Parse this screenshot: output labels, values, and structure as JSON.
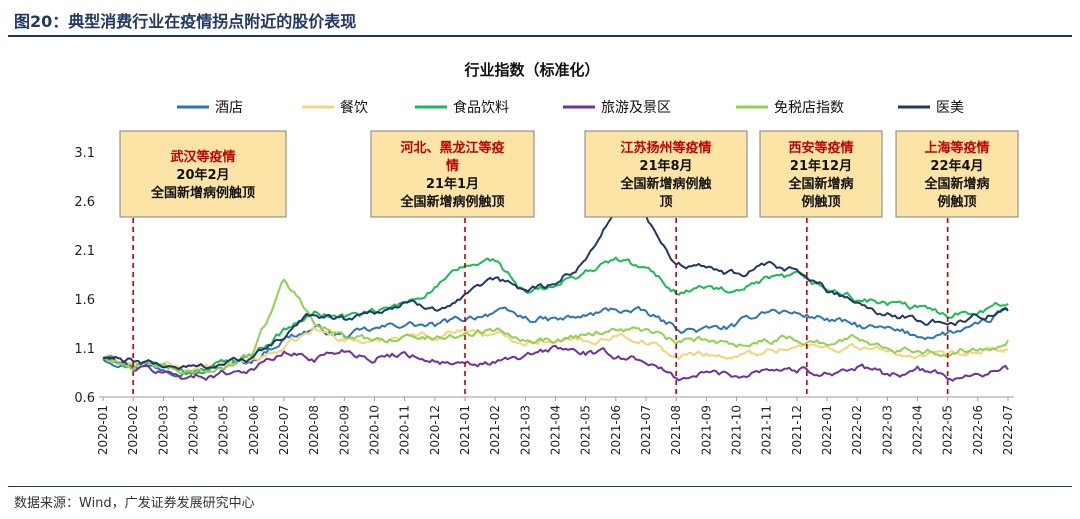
{
  "figure": {
    "title": "图20：典型消费行业在疫情拐点附近的股价表现",
    "source": "数据来源：Wind，广发证券发展研究中心"
  },
  "chart_data": {
    "type": "line",
    "title": "行业指数（标准化）",
    "xlabel": "",
    "ylabel": "",
    "ylim": [
      0.6,
      3.1
    ],
    "yticks": [
      0.6,
      1.1,
      1.6,
      2.1,
      2.6,
      3.1
    ],
    "x": [
      "2020-01",
      "2020-02",
      "2020-03",
      "2020-04",
      "2020-05",
      "2020-06",
      "2020-07",
      "2020-08",
      "2020-09",
      "2020-10",
      "2020-11",
      "2020-12",
      "2021-01",
      "2021-02",
      "2021-03",
      "2021-04",
      "2021-05",
      "2021-06",
      "2021-07",
      "2021-08",
      "2021-09",
      "2021-10",
      "2021-11",
      "2021-12",
      "2022-01",
      "2022-02",
      "2022-03",
      "2022-04",
      "2022-05",
      "2022-06",
      "2022-07"
    ],
    "grid": false,
    "legend_position": "top",
    "series": [
      {
        "name": "酒店",
        "color": "#2e75b6",
        "values": [
          1.0,
          0.94,
          0.9,
          0.88,
          0.9,
          0.98,
          1.2,
          1.3,
          1.22,
          1.28,
          1.35,
          1.32,
          1.4,
          1.48,
          1.4,
          1.38,
          1.42,
          1.5,
          1.45,
          1.3,
          1.28,
          1.32,
          1.5,
          1.45,
          1.4,
          1.32,
          1.28,
          1.22,
          1.25,
          1.3,
          1.5
        ]
      },
      {
        "name": "餐饮",
        "color": "#f2d37e",
        "values": [
          1.0,
          0.93,
          0.92,
          0.88,
          0.92,
          0.98,
          1.1,
          1.28,
          1.2,
          1.15,
          1.25,
          1.22,
          1.3,
          1.22,
          1.18,
          1.2,
          1.15,
          1.25,
          1.18,
          1.0,
          1.05,
          1.0,
          1.08,
          1.12,
          1.1,
          1.12,
          1.05,
          1.02,
          1.0,
          1.05,
          1.08
        ]
      },
      {
        "name": "食品饮料",
        "color": "#1db954",
        "values": [
          1.0,
          0.92,
          0.9,
          0.85,
          0.95,
          1.05,
          1.28,
          1.45,
          1.42,
          1.45,
          1.55,
          1.72,
          1.92,
          2.0,
          1.65,
          1.72,
          1.88,
          2.0,
          1.9,
          1.68,
          1.72,
          1.65,
          1.78,
          1.82,
          1.7,
          1.6,
          1.55,
          1.5,
          1.45,
          1.5,
          1.55
        ]
      },
      {
        "name": "旅游及景区",
        "color": "#7030a0",
        "values": [
          1.0,
          0.9,
          0.85,
          0.8,
          0.85,
          0.9,
          1.05,
          1.0,
          1.08,
          1.0,
          1.05,
          0.98,
          0.9,
          0.95,
          1.0,
          1.1,
          1.05,
          1.02,
          0.98,
          0.78,
          0.85,
          0.82,
          0.9,
          0.88,
          0.85,
          0.9,
          0.82,
          0.88,
          0.8,
          0.85,
          0.88
        ]
      },
      {
        "name": "免税店指数",
        "color": "#92d050",
        "values": [
          1.0,
          0.92,
          0.9,
          0.82,
          0.92,
          1.05,
          1.8,
          1.4,
          1.2,
          1.18,
          1.22,
          1.2,
          1.25,
          1.3,
          1.22,
          1.18,
          1.25,
          1.3,
          1.28,
          1.15,
          1.18,
          1.15,
          1.18,
          1.2,
          1.15,
          1.2,
          1.12,
          1.1,
          1.05,
          1.1,
          1.18
        ]
      },
      {
        "name": "医美",
        "color": "#203864",
        "values": [
          1.0,
          0.95,
          0.92,
          0.9,
          0.95,
          1.0,
          1.22,
          1.45,
          1.4,
          1.48,
          1.55,
          1.52,
          1.6,
          1.78,
          1.7,
          1.75,
          2.0,
          2.55,
          2.45,
          1.95,
          1.9,
          1.85,
          1.92,
          1.88,
          1.7,
          1.58,
          1.45,
          1.4,
          1.35,
          1.42,
          1.48
        ]
      }
    ],
    "annotations": [
      {
        "at": "2020-02",
        "lines": [
          "武汉等疫情",
          "20年2月",
          "全国新增病例触顶"
        ]
      },
      {
        "at": "2021-01",
        "lines": [
          "河北、黑龙江等疫",
          "情",
          "21年1月",
          "全国新增病例触顶"
        ]
      },
      {
        "at": "2021-08",
        "lines": [
          "江苏扬州等疫情",
          "21年8月",
          "全国新增病例触",
          "顶"
        ]
      },
      {
        "at": "2021-12",
        "lines": [
          "西安等疫情",
          "21年12月",
          "全国新增病",
          "例触顶"
        ]
      },
      {
        "at": "2022-05",
        "lines": [
          "上海等疫情",
          "22年4月",
          "全国新增病",
          "例触顶"
        ]
      }
    ],
    "annotation_style": {
      "box_fill": "#fbe4a6",
      "box_stroke": "#7f7f7f",
      "first_line_color": "#c00000",
      "text_color": "#111111",
      "dash_color": "#c00000"
    }
  }
}
